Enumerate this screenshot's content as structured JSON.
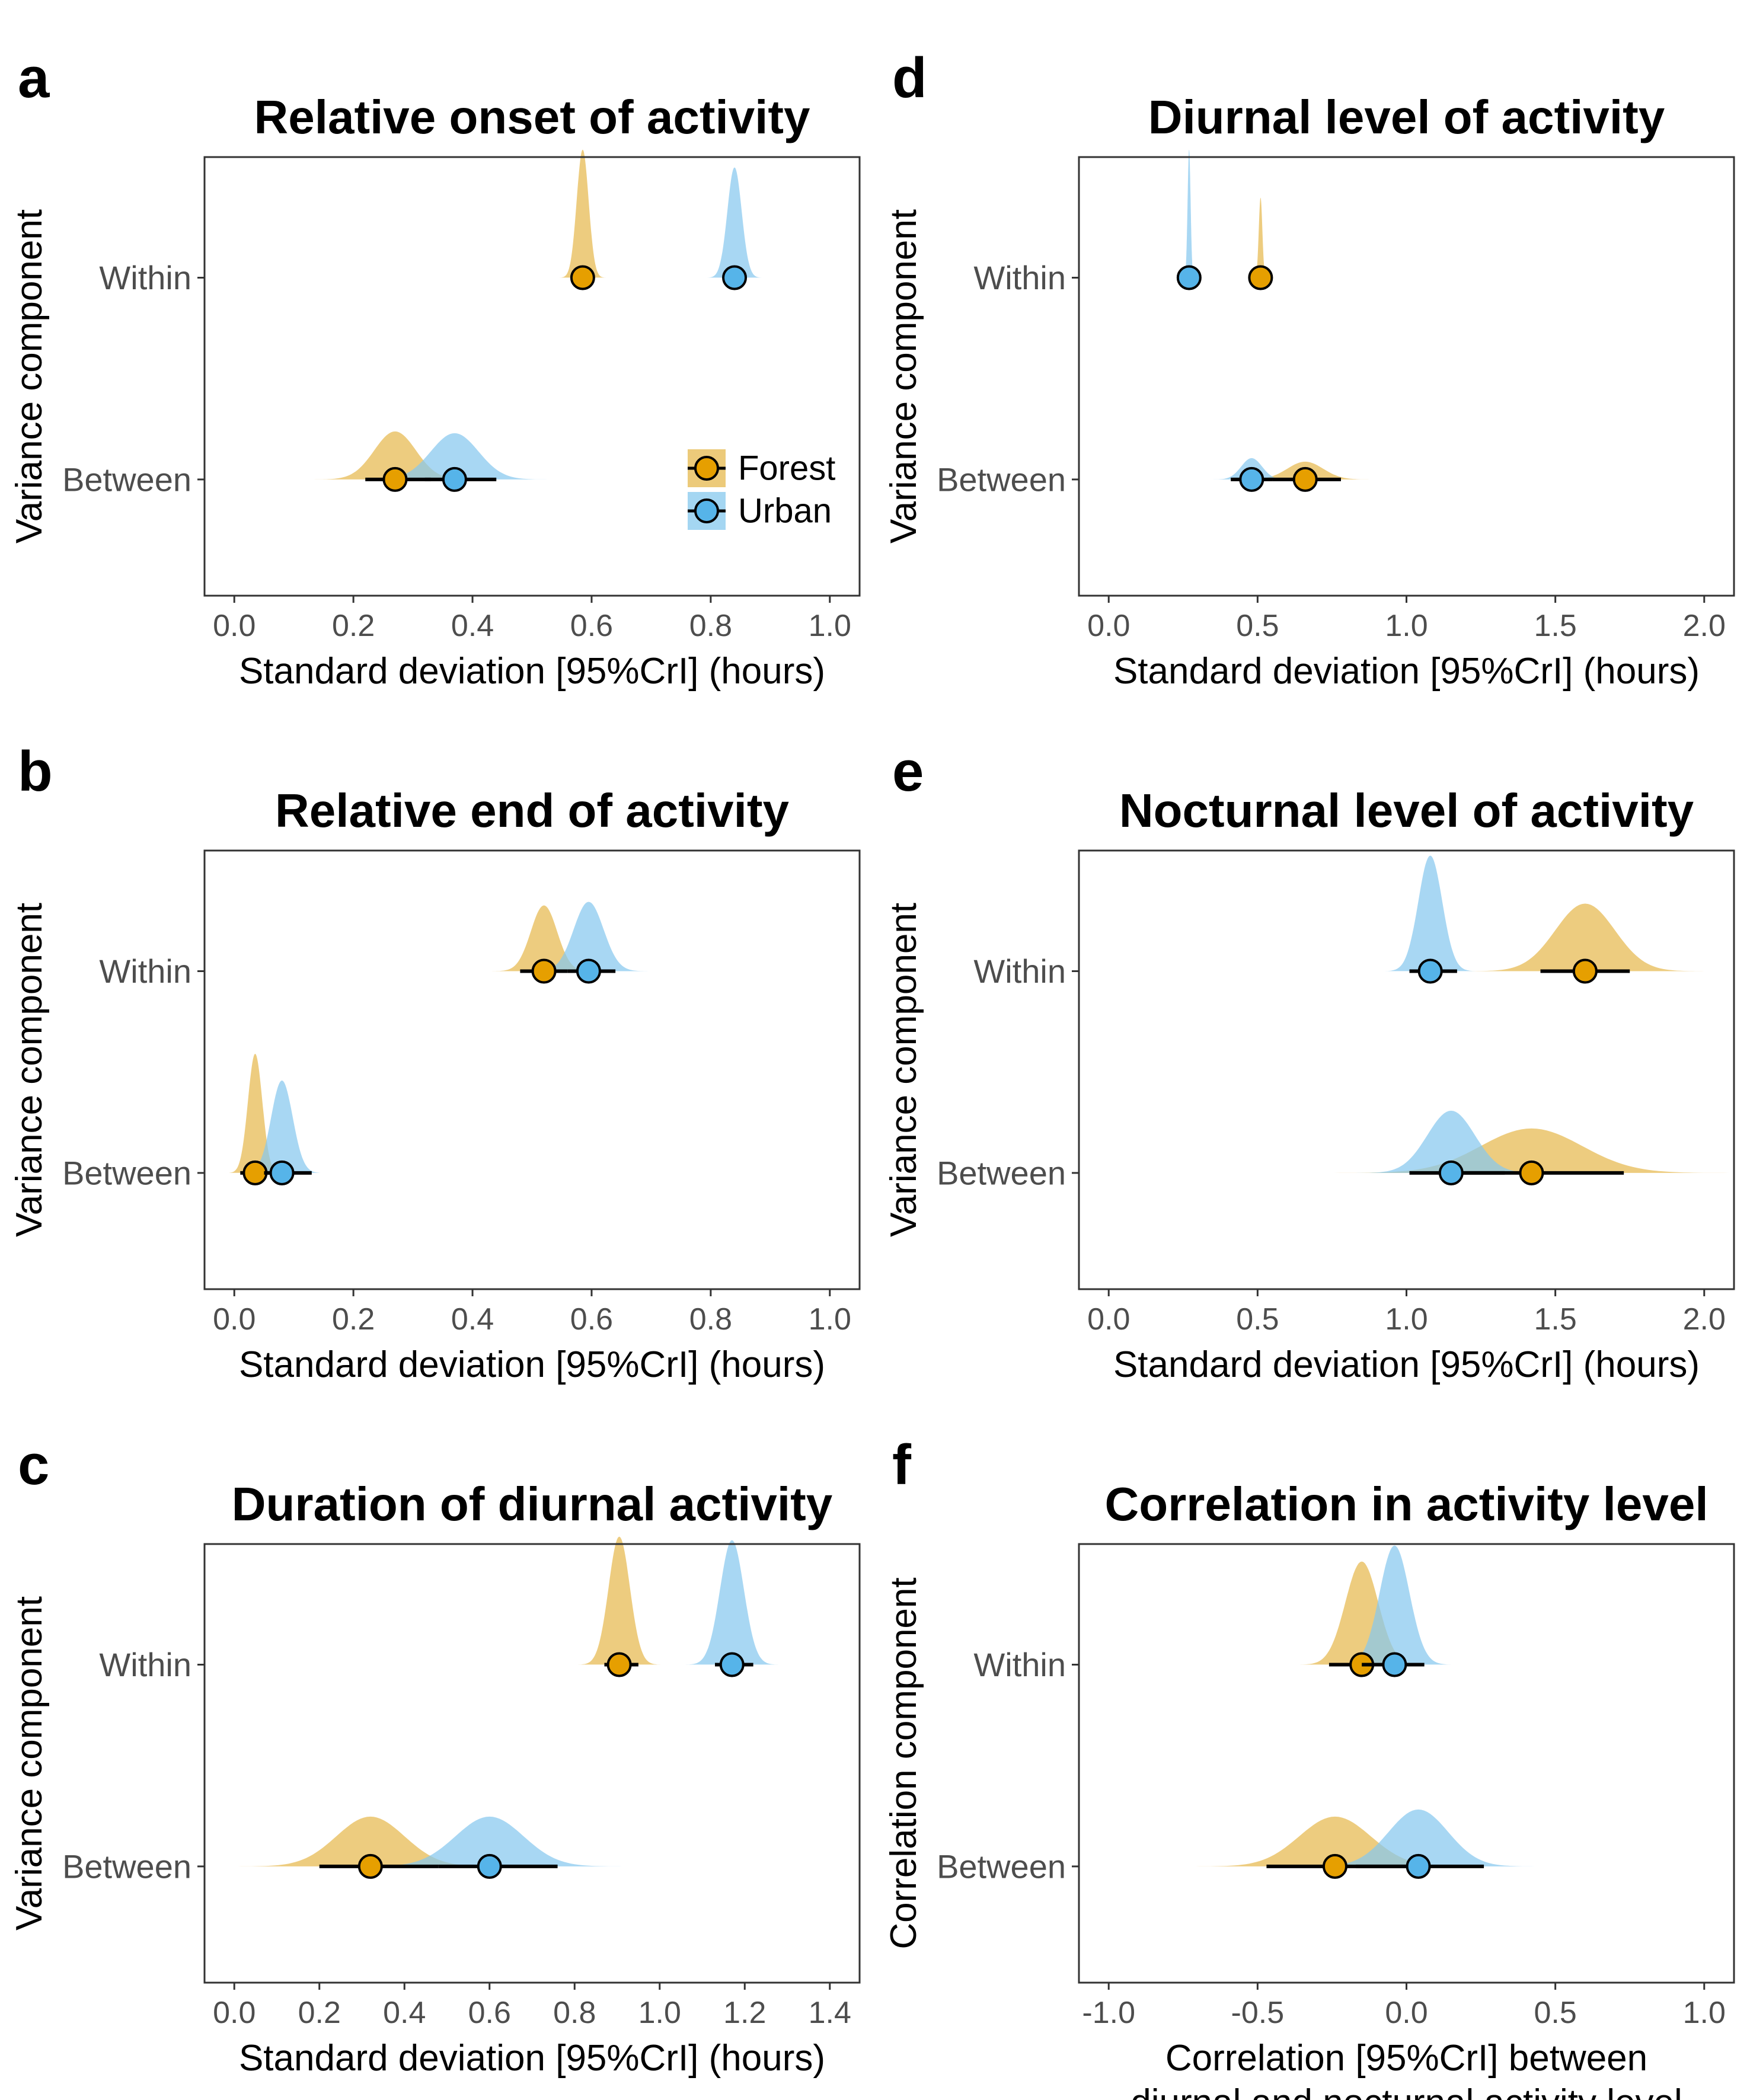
{
  "legend": {
    "placement": "inside-bottom-right of panel a",
    "entries": [
      {
        "name": "Forest",
        "color": "#E69F00",
        "fill": "#E6B84D"
      },
      {
        "name": "Urban",
        "color": "#56B4E9",
        "fill": "#86C8EE"
      }
    ]
  },
  "chart_data": [
    {
      "panel": "a",
      "type": "scatter",
      "title": "Relative onset of activity",
      "xlabel": [
        "Standard deviation [95%CrI] (hours)"
      ],
      "ylabel": "Variance component",
      "categories": [
        "Within",
        "Between"
      ],
      "xlim": [
        -0.05,
        1.05
      ],
      "xticks": [
        0.0,
        0.2,
        0.4,
        0.6,
        0.8,
        1.0
      ],
      "xtick_labels": [
        "0.0",
        "0.2",
        "0.4",
        "0.6",
        "0.8",
        "1.0"
      ],
      "grid": false,
      "legend_entries": [
        "Forest",
        "Urban"
      ],
      "series": [
        {
          "name": "Forest",
          "points": [
            {
              "category": "Within",
              "x": 0.585,
              "ci": [
                0.58,
                0.59
              ],
              "peak": 0.585,
              "sd": 0.01,
              "height": 0.72
            },
            {
              "category": "Between",
              "x": 0.27,
              "ci": [
                0.22,
                0.33
              ],
              "peak": 0.27,
              "sd": 0.035,
              "height": 0.27
            }
          ]
        },
        {
          "name": "Urban",
          "points": [
            {
              "category": "Within",
              "x": 0.84,
              "ci": [
                0.83,
                0.85
              ],
              "peak": 0.84,
              "sd": 0.012,
              "height": 0.62
            },
            {
              "category": "Between",
              "x": 0.37,
              "ci": [
                0.32,
                0.44
              ],
              "peak": 0.37,
              "sd": 0.04,
              "height": 0.26
            }
          ]
        }
      ]
    },
    {
      "panel": "b",
      "type": "scatter",
      "title": "Relative end of activity",
      "xlabel": [
        "Standard deviation [95%CrI] (hours)"
      ],
      "ylabel": "Variance component",
      "categories": [
        "Within",
        "Between"
      ],
      "xlim": [
        -0.05,
        1.05
      ],
      "xticks": [
        0.0,
        0.2,
        0.4,
        0.6,
        0.8,
        1.0
      ],
      "xtick_labels": [
        "0.0",
        "0.2",
        "0.4",
        "0.6",
        "0.8",
        "1.0"
      ],
      "grid": false,
      "series": [
        {
          "name": "Forest",
          "points": [
            {
              "category": "Within",
              "x": 0.52,
              "ci": [
                0.48,
                0.56
              ],
              "peak": 0.52,
              "sd": 0.022,
              "height": 0.37
            },
            {
              "category": "Between",
              "x": 0.035,
              "ci": [
                0.01,
                0.06
              ],
              "peak": 0.035,
              "sd": 0.012,
              "height": 0.67
            }
          ]
        },
        {
          "name": "Urban",
          "points": [
            {
              "category": "Within",
              "x": 0.595,
              "ci": [
                0.56,
                0.64
              ],
              "peak": 0.595,
              "sd": 0.025,
              "height": 0.39
            },
            {
              "category": "Between",
              "x": 0.08,
              "ci": [
                0.05,
                0.13
              ],
              "peak": 0.08,
              "sd": 0.018,
              "height": 0.52
            }
          ]
        }
      ]
    },
    {
      "panel": "c",
      "type": "scatter",
      "title": "Duration of diurnal activity",
      "xlabel": [
        "Standard deviation [95%CrI] (hours)"
      ],
      "ylabel": "Variance component",
      "categories": [
        "Within",
        "Between"
      ],
      "xlim": [
        -0.07,
        1.47
      ],
      "xticks": [
        0.0,
        0.2,
        0.4,
        0.6,
        0.8,
        1.0,
        1.2,
        1.4
      ],
      "xtick_labels": [
        "0.0",
        "0.2",
        "0.4",
        "0.6",
        "0.8",
        "1.0",
        "1.2",
        "1.4"
      ],
      "grid": false,
      "series": [
        {
          "name": "Forest",
          "points": [
            {
              "category": "Within",
              "x": 0.905,
              "ci": [
                0.87,
                0.95
              ],
              "peak": 0.905,
              "sd": 0.025,
              "height": 0.72
            },
            {
              "category": "Between",
              "x": 0.32,
              "ci": [
                0.2,
                0.48
              ],
              "peak": 0.32,
              "sd": 0.08,
              "height": 0.28
            }
          ]
        },
        {
          "name": "Urban",
          "points": [
            {
              "category": "Within",
              "x": 1.17,
              "ci": [
                1.13,
                1.22
              ],
              "peak": 1.17,
              "sd": 0.028,
              "height": 0.7
            },
            {
              "category": "Between",
              "x": 0.6,
              "ci": [
                0.48,
                0.76
              ],
              "peak": 0.6,
              "sd": 0.08,
              "height": 0.28
            }
          ]
        }
      ]
    },
    {
      "panel": "d",
      "type": "scatter",
      "title": "Diurnal level of activity",
      "xlabel": [
        "Standard deviation [95%CrI] (hours)"
      ],
      "ylabel": "Variance component",
      "categories": [
        "Within",
        "Between"
      ],
      "xlim": [
        -0.1,
        2.1
      ],
      "xticks": [
        0.0,
        0.5,
        1.0,
        1.5,
        2.0
      ],
      "xtick_labels": [
        "0.0",
        "0.5",
        "1.0",
        "1.5",
        "2.0"
      ],
      "grid": false,
      "series": [
        {
          "name": "Forest",
          "points": [
            {
              "category": "Within",
              "x": 0.51,
              "ci": [
                0.5,
                0.52
              ],
              "peak": 0.51,
              "sd": 0.006,
              "height": 0.45
            },
            {
              "category": "Between",
              "x": 0.66,
              "ci": [
                0.55,
                0.78
              ],
              "peak": 0.66,
              "sd": 0.06,
              "height": 0.1
            }
          ]
        },
        {
          "name": "Urban",
          "points": [
            {
              "category": "Within",
              "x": 0.27,
              "ci": [
                0.26,
                0.28
              ],
              "peak": 0.27,
              "sd": 0.005,
              "height": 0.72
            },
            {
              "category": "Between",
              "x": 0.48,
              "ci": [
                0.41,
                0.55
              ],
              "peak": 0.48,
              "sd": 0.035,
              "height": 0.12
            }
          ]
        }
      ]
    },
    {
      "panel": "e",
      "type": "scatter",
      "title": "Nocturnal level of activity",
      "xlabel": [
        "Standard deviation [95%CrI] (hours)"
      ],
      "ylabel": "Variance component",
      "categories": [
        "Within",
        "Between"
      ],
      "xlim": [
        -0.1,
        2.1
      ],
      "xticks": [
        0.0,
        0.5,
        1.0,
        1.5,
        2.0
      ],
      "xtick_labels": [
        "0.0",
        "0.5",
        "1.0",
        "1.5",
        "2.0"
      ],
      "grid": false,
      "series": [
        {
          "name": "Forest",
          "points": [
            {
              "category": "Within",
              "x": 1.6,
              "ci": [
                1.45,
                1.75
              ],
              "peak": 1.6,
              "sd": 0.1,
              "height": 0.38
            },
            {
              "category": "Between",
              "x": 1.42,
              "ci": [
                1.13,
                1.73
              ],
              "peak": 1.42,
              "sd": 0.17,
              "height": 0.25
            }
          ]
        },
        {
          "name": "Urban",
          "points": [
            {
              "category": "Within",
              "x": 1.08,
              "ci": [
                1.01,
                1.17
              ],
              "peak": 1.08,
              "sd": 0.04,
              "height": 0.65
            },
            {
              "category": "Between",
              "x": 1.15,
              "ci": [
                1.01,
                1.33
              ],
              "peak": 1.15,
              "sd": 0.08,
              "height": 0.35
            }
          ]
        }
      ]
    },
    {
      "panel": "f",
      "type": "scatter",
      "title": "Correlation in activity level",
      "xlabel": [
        "Correlation [95%CrI] between",
        "diurnal and nocturnal activity level"
      ],
      "ylabel": "Correlation component",
      "categories": [
        "Within",
        "Between"
      ],
      "xlim": [
        -1.1,
        1.1
      ],
      "xticks": [
        -1.0,
        -0.5,
        0.0,
        0.5,
        1.0
      ],
      "xtick_labels": [
        "-1.0",
        "-0.5",
        "0.0",
        "0.5",
        "1.0"
      ],
      "grid": false,
      "series": [
        {
          "name": "Forest",
          "points": [
            {
              "category": "Within",
              "x": -0.15,
              "ci": [
                -0.26,
                -0.04
              ],
              "peak": -0.15,
              "sd": 0.055,
              "height": 0.58
            },
            {
              "category": "Between",
              "x": -0.24,
              "ci": [
                -0.47,
                0.0
              ],
              "peak": -0.24,
              "sd": 0.12,
              "height": 0.28
            }
          ]
        },
        {
          "name": "Urban",
          "points": [
            {
              "category": "Within",
              "x": -0.04,
              "ci": [
                -0.15,
                0.06
              ],
              "peak": -0.04,
              "sd": 0.05,
              "height": 0.67
            },
            {
              "category": "Between",
              "x": 0.04,
              "ci": [
                -0.17,
                0.26
              ],
              "peak": 0.04,
              "sd": 0.1,
              "height": 0.32
            }
          ]
        }
      ]
    }
  ]
}
